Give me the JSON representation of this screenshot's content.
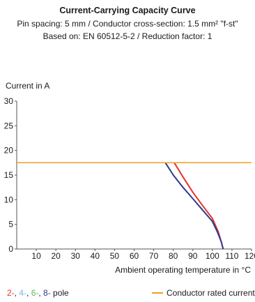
{
  "chart_data": {
    "type": "line",
    "title": "Current-Carrying Capacity Curve",
    "subtitle_lines": [
      "Pin spacing: 5 mm / Conductor cross-section: 1.5 mm² \"f-st\"",
      "Based on: EN 60512-5-2 / Reduction factor: 1"
    ],
    "ylabel": "Current in A",
    "xlabel": "Ambient operating temperature in °C",
    "xlim": [
      0,
      120
    ],
    "ylim": [
      0,
      30
    ],
    "x_ticks": [
      "10",
      "20",
      "30",
      "40",
      "50",
      "60",
      "70",
      "80",
      "90",
      "100",
      "110",
      "120"
    ],
    "y_ticks": [
      "0",
      "5",
      "10",
      "15",
      "20",
      "25",
      "30"
    ],
    "grid": false,
    "legend": {
      "pole_labels": [
        {
          "text": "2-",
          "color": "#e63329"
        },
        {
          "text": "4-",
          "color": "#7fb3e0"
        },
        {
          "text": "6-",
          "color": "#5cb85c"
        },
        {
          "text": "8-",
          "color": "#2b3a8f"
        }
      ],
      "pole_suffix": " pole",
      "rated_label": "Conductor rated current"
    },
    "series": [
      {
        "name": "2-",
        "color": "#e63329",
        "x": [
          80.5,
          85,
          90,
          95,
          100,
          103,
          104.5,
          105.5
        ],
        "y": [
          17.5,
          14.6,
          11.5,
          8.8,
          6.2,
          3.5,
          1.5,
          0
        ]
      },
      {
        "name": "8-",
        "color": "#2b3a8f",
        "x": [
          76,
          80,
          85,
          90,
          95,
          100,
          102.5,
          104.5,
          105.5
        ],
        "y": [
          17.5,
          15.0,
          12.5,
          10.2,
          7.9,
          5.6,
          3.5,
          1.5,
          0
        ]
      },
      {
        "name": "Conductor rated current",
        "color": "#f39c1e",
        "x": [
          0,
          120
        ],
        "y": [
          17.5,
          17.5
        ]
      }
    ]
  }
}
